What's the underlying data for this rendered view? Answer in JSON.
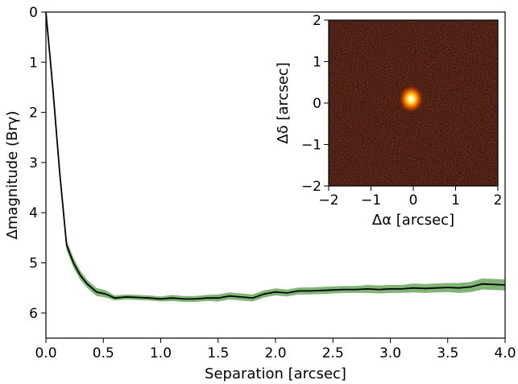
{
  "chart_data": [
    {
      "type": "line",
      "title": "",
      "xlabel": "Separation [arcsec]",
      "ylabel": "Δmagnitude (Brγ)",
      "xlim": [
        0.0,
        4.0
      ],
      "ylim": [
        6.5,
        0.0
      ],
      "y_inverted": true,
      "xticks": [
        "0.0",
        "0.5",
        "1.0",
        "1.5",
        "2.0",
        "2.5",
        "3.0",
        "3.5",
        "4.0"
      ],
      "yticks": [
        "0",
        "1",
        "2",
        "3",
        "4",
        "5",
        "6"
      ],
      "grid": false,
      "series": [
        {
          "line_color": "#000000",
          "band_color": "#6aa85e",
          "x": [
            0.0,
            0.06,
            0.12,
            0.18,
            0.24,
            0.3,
            0.36,
            0.44,
            0.52,
            0.6,
            0.7,
            0.8,
            0.9,
            1.0,
            1.1,
            1.2,
            1.3,
            1.4,
            1.5,
            1.6,
            1.7,
            1.8,
            1.9,
            2.0,
            2.1,
            2.2,
            2.3,
            2.4,
            2.5,
            2.6,
            2.7,
            2.8,
            2.9,
            3.0,
            3.1,
            3.2,
            3.3,
            3.4,
            3.5,
            3.6,
            3.7,
            3.8,
            3.9,
            4.0
          ],
          "y": [
            0.0,
            1.5,
            3.2,
            4.65,
            5.0,
            5.25,
            5.42,
            5.58,
            5.62,
            5.7,
            5.68,
            5.69,
            5.7,
            5.72,
            5.7,
            5.72,
            5.72,
            5.7,
            5.7,
            5.66,
            5.68,
            5.7,
            5.62,
            5.58,
            5.6,
            5.56,
            5.56,
            5.55,
            5.54,
            5.53,
            5.53,
            5.52,
            5.53,
            5.52,
            5.52,
            5.5,
            5.51,
            5.5,
            5.49,
            5.5,
            5.48,
            5.42,
            5.43,
            5.44
          ],
          "band_halfwidth": [
            0.0,
            0.05,
            0.07,
            0.1,
            0.1,
            0.09,
            0.08,
            0.08,
            0.07,
            0.05,
            0.05,
            0.05,
            0.05,
            0.05,
            0.06,
            0.06,
            0.06,
            0.06,
            0.07,
            0.07,
            0.07,
            0.07,
            0.07,
            0.07,
            0.07,
            0.07,
            0.07,
            0.07,
            0.07,
            0.07,
            0.07,
            0.08,
            0.08,
            0.08,
            0.08,
            0.09,
            0.09,
            0.09,
            0.09,
            0.1,
            0.1,
            0.11,
            0.11,
            0.11
          ]
        }
      ]
    },
    {
      "type": "heatmap",
      "title": "",
      "xlabel": "Δα [arcsec]",
      "ylabel": "Δδ [arcsec]",
      "xlim": [
        -2,
        2
      ],
      "ylim": [
        -2,
        2
      ],
      "xticks": [
        "−2",
        "−1",
        "0",
        "1",
        "2"
      ],
      "yticks": [
        "−2",
        "−1",
        "0",
        "1",
        "2"
      ],
      "colormap": "hot",
      "source_position": [
        -0.05,
        0.1
      ],
      "background_color": "#3a120a",
      "peak_color": "#ffffff"
    }
  ]
}
